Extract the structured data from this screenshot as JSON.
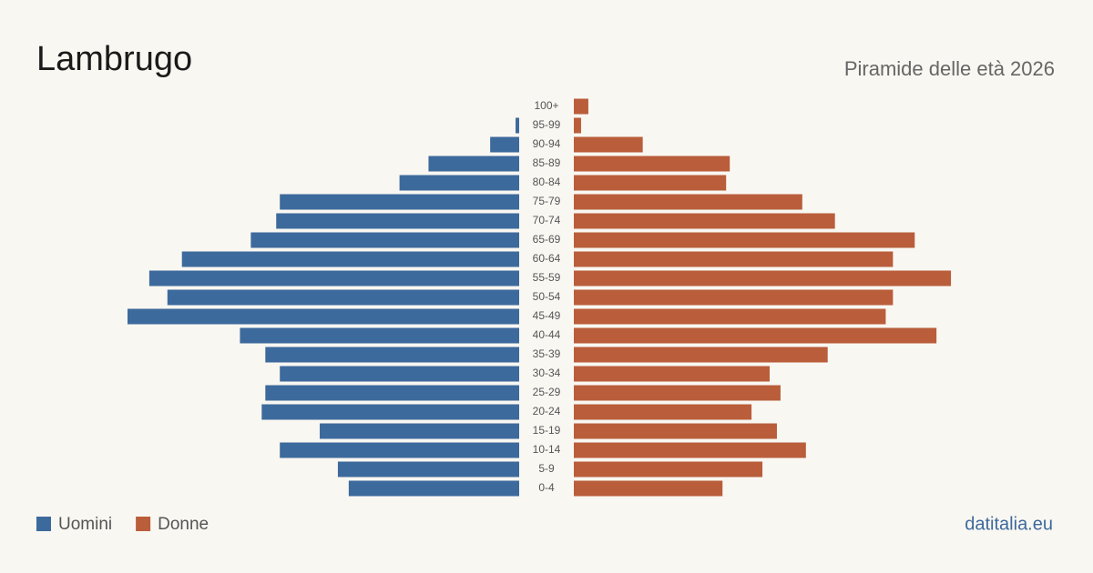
{
  "chart_data": {
    "type": "pyramid",
    "title": "Lambrugo",
    "subtitle": "Piramide delle età 2026",
    "source": "datitalia.eu",
    "categories": [
      "100+",
      "95-99",
      "90-94",
      "85-89",
      "80-84",
      "75-79",
      "70-74",
      "65-69",
      "60-64",
      "55-59",
      "50-54",
      "45-49",
      "40-44",
      "35-39",
      "30-34",
      "25-29",
      "20-24",
      "15-19",
      "10-14",
      "5-9",
      "0-4"
    ],
    "series": [
      {
        "name": "Uomini",
        "color": "#3d6a9c",
        "values": [
          0,
          1,
          8,
          25,
          33,
          66,
          67,
          74,
          93,
          102,
          97,
          108,
          77,
          70,
          66,
          70,
          71,
          55,
          66,
          50,
          47
        ]
      },
      {
        "name": "Donne",
        "color": "#b95d3b",
        "values": [
          4,
          2,
          19,
          43,
          42,
          63,
          72,
          94,
          88,
          104,
          88,
          86,
          100,
          70,
          54,
          57,
          49,
          56,
          64,
          52,
          41
        ]
      }
    ]
  }
}
